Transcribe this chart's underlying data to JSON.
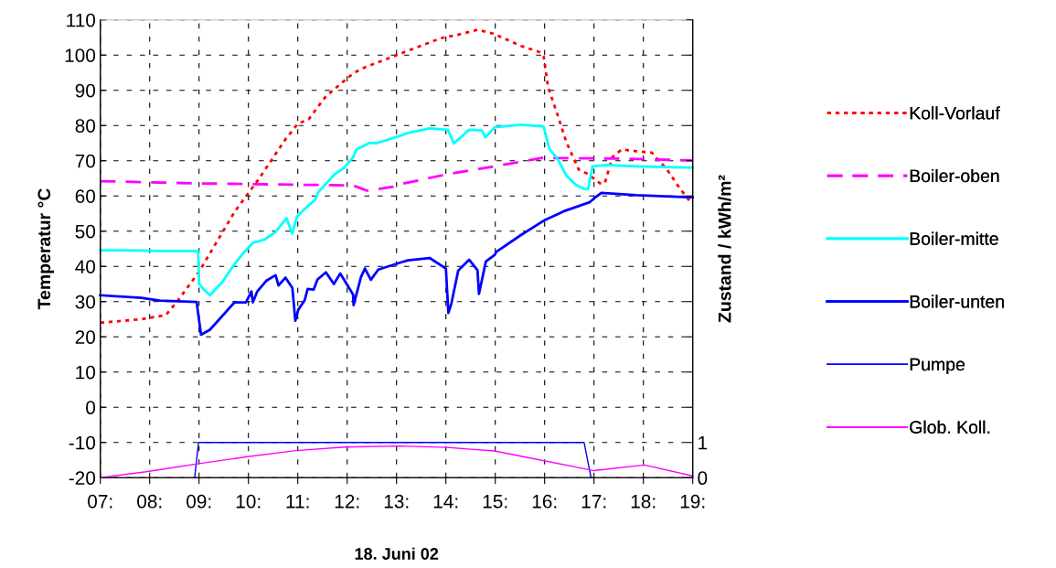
{
  "chart_data": {
    "type": "line",
    "xlabel": "18. Juni 02",
    "ylabel": "Temperatur °C",
    "y2label": "Zustand / kWh/m²",
    "xlim": [
      7,
      19
    ],
    "xticks": [
      {
        "value": 7,
        "label": "07:"
      },
      {
        "value": 8,
        "label": "08:"
      },
      {
        "value": 9,
        "label": "09:"
      },
      {
        "value": 10,
        "label": "10:"
      },
      {
        "value": 11,
        "label": "11:"
      },
      {
        "value": 12,
        "label": "12:"
      },
      {
        "value": 13,
        "label": "13:"
      },
      {
        "value": 14,
        "label": "14:"
      },
      {
        "value": 15,
        "label": "15:"
      },
      {
        "value": 16,
        "label": "16:"
      },
      {
        "value": 17,
        "label": "17:"
      },
      {
        "value": 18,
        "label": "18:"
      },
      {
        "value": 19,
        "label": "19:"
      }
    ],
    "ylim": [
      -20,
      110
    ],
    "yticks": [
      -20,
      -10,
      0,
      10,
      20,
      30,
      40,
      50,
      60,
      70,
      80,
      90,
      100,
      110
    ],
    "y2lim": [
      0,
      13
    ],
    "y2ticks": [
      0,
      1,
      {
        "value": 2,
        "label": null
      },
      {
        "value": 3,
        "label": null
      },
      {
        "value": 4,
        "label": null
      },
      {
        "value": 5,
        "label": null
      },
      {
        "value": 6,
        "label": null
      },
      {
        "value": 7,
        "label": null
      },
      {
        "value": 8,
        "label": null
      },
      {
        "value": 9,
        "label": null
      },
      {
        "value": 10,
        "label": null
      },
      {
        "value": 11,
        "label": null
      },
      {
        "value": 12,
        "label": null
      },
      {
        "value": 13,
        "label": null
      }
    ],
    "grid": true,
    "legend": "right",
    "marker": "none",
    "series": [
      {
        "name": "Koll-Vorlauf",
        "color": "#ff0000",
        "line_style": "dotted",
        "x": [
          7,
          7.83,
          8.33,
          8.57,
          9.0,
          9.72,
          10.2,
          10.76,
          11.0,
          11.22,
          11.57,
          12.12,
          12.37,
          12.93,
          13.17,
          13.9,
          14.22,
          14.65,
          14.96,
          15.52,
          15.89,
          15.98,
          16.07,
          16.26,
          16.44,
          16.69,
          16.88,
          17.12,
          17.22,
          17.37,
          17.56,
          17.86,
          18.17,
          18.48,
          18.73,
          18.97
        ],
        "values": [
          24,
          25,
          26.2,
          30.3,
          38.5,
          55.5,
          64.6,
          76.3,
          80.5,
          81.8,
          88.3,
          94.8,
          96.6,
          99.6,
          100.9,
          104.8,
          105.7,
          107.2,
          106.1,
          102.6,
          100.9,
          99.6,
          90.9,
          83.1,
          75.3,
          67.5,
          66.2,
          63.6,
          63.6,
          71,
          73.2,
          72.7,
          72.3,
          67.5,
          62.3,
          58
        ]
      },
      {
        "name": "Boiler-oben",
        "color": "#ff00ff",
        "line_style": "dashed",
        "x": [
          7,
          8.85,
          10.96,
          12.12,
          12.4,
          12.93,
          13.1,
          14.04,
          15.27,
          15.95,
          17.56,
          19
        ],
        "values": [
          64.2,
          63.6,
          63.2,
          63.0,
          61.5,
          62.6,
          63.4,
          66.2,
          69.1,
          70.8,
          70.6,
          70.1
        ]
      },
      {
        "name": "Boiler-mitte",
        "color": "#00ffff",
        "line_style": "solid",
        "x": [
          7,
          7.83,
          8.2,
          8.98,
          9.0,
          9.1,
          9.22,
          9.47,
          9.72,
          9.87,
          10.09,
          10.33,
          10.55,
          10.77,
          10.89,
          10.98,
          11.2,
          11.35,
          11.41,
          11.75,
          11.94,
          12.12,
          12.19,
          12.46,
          12.6,
          13.08,
          13.23,
          13.67,
          14.04,
          14.16,
          14.47,
          14.73,
          14.8,
          14.99,
          15.52,
          15.98,
          16.1,
          16.26,
          16.44,
          16.63,
          16.81,
          16.88,
          16.97,
          17.25,
          17.86,
          19
        ],
        "values": [
          44.6,
          44.5,
          44.4,
          44.4,
          35,
          33.4,
          31.8,
          35.5,
          40.7,
          43.3,
          46.7,
          47.6,
          49.8,
          53.7,
          49.3,
          54.1,
          57.1,
          58.9,
          61,
          66.2,
          68,
          71,
          73.2,
          75.1,
          75,
          77.1,
          77.9,
          79.2,
          78.8,
          74.9,
          78.8,
          78.6,
          76.6,
          79.5,
          80.2,
          79.7,
          73.2,
          70.6,
          65.8,
          63.2,
          61.9,
          62,
          68.4,
          68.8,
          68.4,
          68
        ]
      },
      {
        "name": "Boiler-unten",
        "color": "#0000ff",
        "line_style": "solid",
        "x": [
          7,
          7.83,
          8.2,
          8.95,
          9.04,
          9.22,
          9.72,
          9.95,
          10.06,
          10.09,
          10.18,
          10.36,
          10.55,
          10.61,
          10.75,
          10.89,
          10.95,
          11.01,
          11.14,
          11.2,
          11.32,
          11.4,
          11.57,
          11.73,
          11.86,
          12.12,
          12.13,
          12.28,
          12.36,
          12.48,
          12.63,
          13.08,
          13.23,
          13.67,
          14.0,
          14.05,
          14.11,
          14.25,
          14.47,
          14.64,
          14.67,
          14.81,
          14.99,
          15.02,
          15.52,
          16.01,
          16.38,
          16.91,
          17.0,
          17.15,
          17.86,
          19
        ],
        "values": [
          31.8,
          31.1,
          30.3,
          29.9,
          20.6,
          22,
          29.8,
          29.8,
          32.9,
          29.8,
          32.9,
          35.9,
          37.5,
          34.6,
          36.8,
          33.9,
          24.6,
          27.7,
          30.4,
          33.6,
          33.4,
          36.3,
          38.3,
          35,
          38,
          32,
          29,
          37,
          39.4,
          36.2,
          39.1,
          41.1,
          41.7,
          42.4,
          39.4,
          26.8,
          29.4,
          38.8,
          41.9,
          38.9,
          32.2,
          41.4,
          43.3,
          44.1,
          48.9,
          53.2,
          55.6,
          58.2,
          59.3,
          60.9,
          60.2,
          59.6
        ]
      },
      {
        "name": "Pumpe",
        "color": "#0000ff",
        "line_style": "solid",
        "axis": "y2",
        "x": [
          8.91,
          8.99,
          16.8,
          16.94
        ],
        "values": [
          0,
          1,
          1,
          0
        ]
      },
      {
        "name": "Glob. Koll.",
        "color": "#ff00ff",
        "line_style": "solid",
        "axis": "y2",
        "x": [
          7,
          7.93,
          9.0,
          9.95,
          10.96,
          11.96,
          13.04,
          14.01,
          14.98,
          17.0,
          18.02,
          19
        ],
        "values": [
          0.0,
          0.17,
          0.4,
          0.59,
          0.77,
          0.87,
          0.9,
          0.86,
          0.76,
          0.2,
          0.36,
          0.05
        ]
      }
    ]
  }
}
